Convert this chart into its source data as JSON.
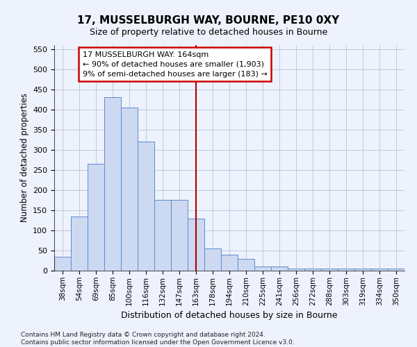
{
  "title": "17, MUSSELBURGH WAY, BOURNE, PE10 0XY",
  "subtitle": "Size of property relative to detached houses in Bourne",
  "xlabel": "Distribution of detached houses by size in Bourne",
  "ylabel": "Number of detached properties",
  "categories": [
    "38sqm",
    "54sqm",
    "69sqm",
    "85sqm",
    "100sqm",
    "116sqm",
    "132sqm",
    "147sqm",
    "163sqm",
    "178sqm",
    "194sqm",
    "210sqm",
    "225sqm",
    "241sqm",
    "256sqm",
    "272sqm",
    "288sqm",
    "303sqm",
    "319sqm",
    "334sqm",
    "350sqm"
  ],
  "values": [
    35,
    135,
    265,
    430,
    405,
    320,
    175,
    175,
    130,
    55,
    40,
    30,
    10,
    10,
    5,
    5,
    5,
    5,
    5,
    5,
    5
  ],
  "bar_color": "#ccd9f0",
  "bar_edge_color": "#5b8bd0",
  "vline_x_index": 8,
  "vline_color": "#aa0000",
  "annotation_text": "17 MUSSELBURGH WAY: 164sqm\n← 90% of detached houses are smaller (1,903)\n9% of semi-detached houses are larger (183) →",
  "annotation_box_facecolor": "#ffffff",
  "annotation_box_edgecolor": "#cc0000",
  "ylim": [
    0,
    560
  ],
  "yticks": [
    0,
    50,
    100,
    150,
    200,
    250,
    300,
    350,
    400,
    450,
    500,
    550
  ],
  "footer_line1": "Contains HM Land Registry data © Crown copyright and database right 2024.",
  "footer_line2": "Contains public sector information licensed under the Open Government Licence v3.0.",
  "bg_color": "#eef2fc",
  "grid_color": "#b0b8d8"
}
